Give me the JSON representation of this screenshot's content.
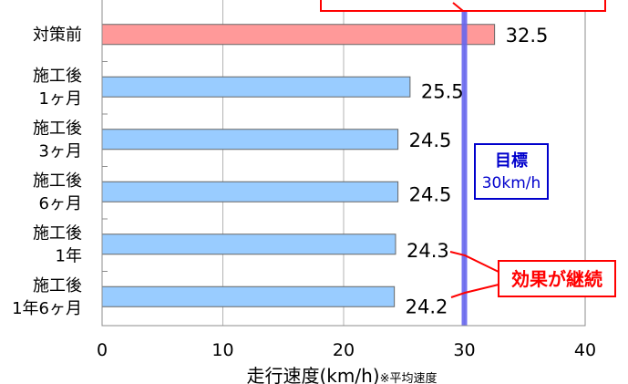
{
  "chart_data": {
    "type": "bar",
    "orientation": "horizontal",
    "categories": [
      [
        "対策前"
      ],
      [
        "施工後",
        "1ヶ月"
      ],
      [
        "施工後",
        "3ヶ月"
      ],
      [
        "施工後",
        "6ヶ月"
      ],
      [
        "施工後",
        "1年"
      ],
      [
        "施工後",
        "1年6ヶ月"
      ]
    ],
    "values": [
      32.5,
      25.5,
      24.5,
      24.5,
      24.3,
      24.2
    ],
    "value_labels": [
      "32.5",
      "25.5",
      "24.5",
      "24.5",
      "24.3",
      "24.2"
    ],
    "bar_colors": [
      "#ff9999",
      "#99ccff",
      "#99ccff",
      "#99ccff",
      "#99ccff",
      "#99ccff"
    ],
    "xlim": [
      0,
      40
    ],
    "xticks": [
      0,
      10,
      20,
      30,
      40
    ],
    "xtick_labels": [
      "0",
      "10",
      "20",
      "30",
      "40"
    ],
    "xlabel_main": "走行速度(km/h)",
    "xlabel_note": "※平均速度",
    "grid": "vertical",
    "target": {
      "value": 30,
      "line_color": "#6666ee",
      "label_line1": "目標",
      "label_line2": "30km/h",
      "box_color": "#0000cc"
    },
    "callout": {
      "text": "効果が継続",
      "color": "#ff0000"
    }
  }
}
